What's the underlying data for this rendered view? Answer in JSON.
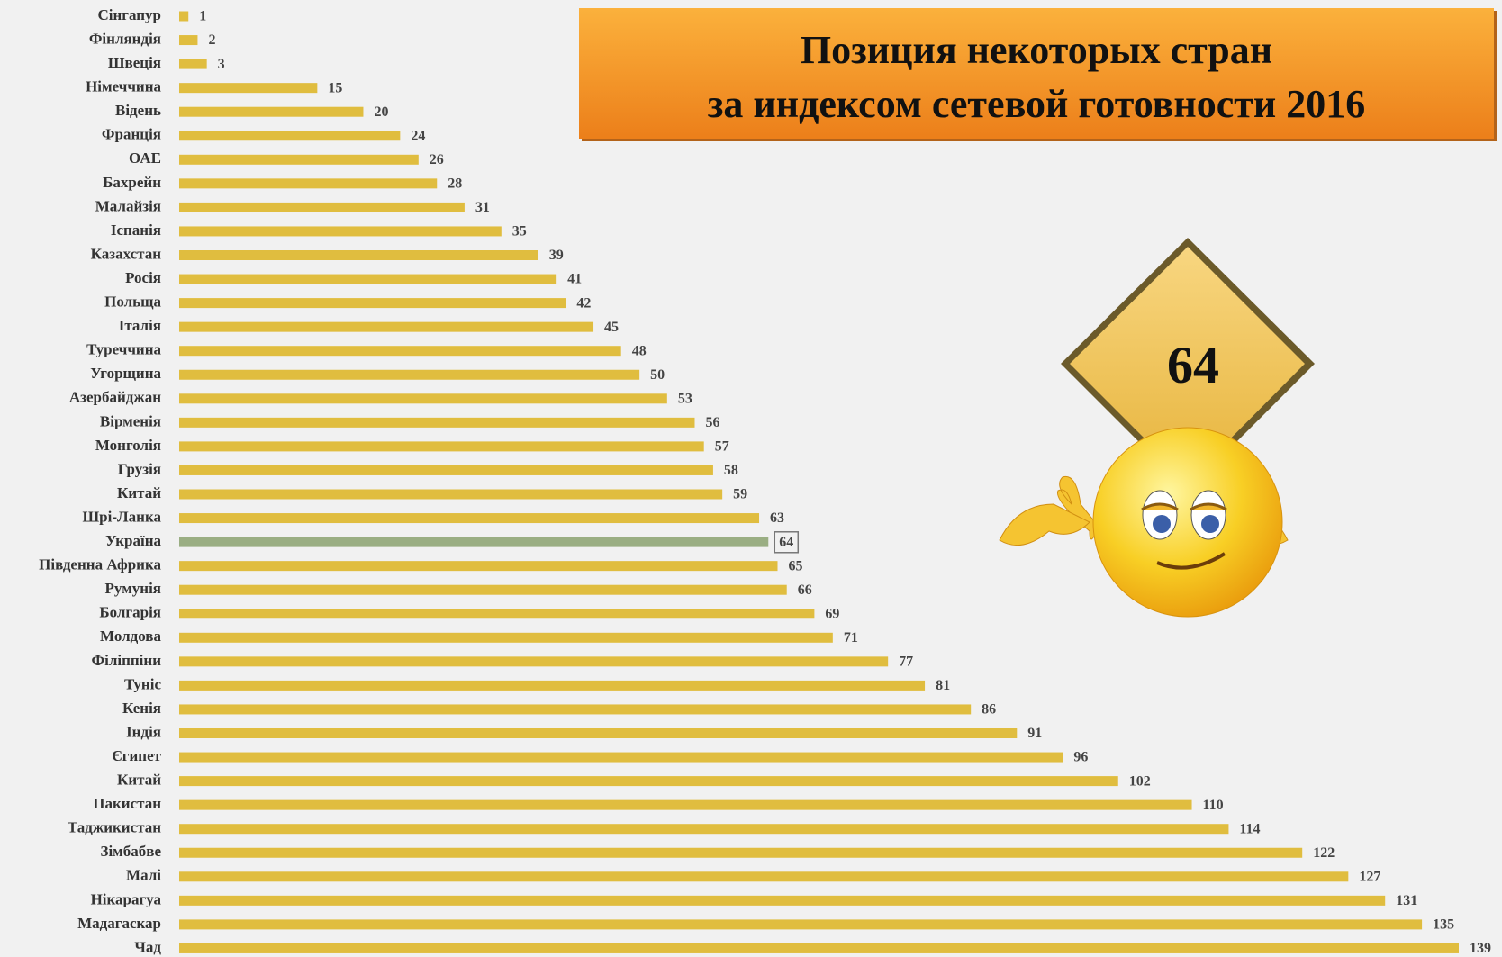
{
  "chart_data": {
    "type": "bar",
    "orientation": "horizontal",
    "title": [
      "Позиция некоторых стран",
      "за индексом сетевой готовности 2016"
    ],
    "annotation": "64",
    "categories": [
      "Сінгапур",
      "Фінляндія",
      "Швеція",
      "Німеччина",
      "Відень",
      "Франція",
      "ОАЕ",
      "Бахрейн",
      "Малайзія",
      "Іспанія",
      "Казахстан",
      "Росія",
      "Польща",
      "Італія",
      "Туреччина",
      "Угорщина",
      "Азербайджан",
      "Вірменія",
      "Монголія",
      "Грузія",
      "Китай",
      "Шрі-Ланка",
      "Україна",
      "Південна Африка",
      "Румунія",
      "Болгарія",
      "Молдова",
      "Філіппіни",
      "Туніс",
      "Кенія",
      "Індія",
      "Єгипет",
      "Китай",
      "Пакистан",
      "Таджикистан",
      "Зімбабве",
      "Малі",
      "Нікарагуа",
      "Мадагаскар",
      "Чад"
    ],
    "values": [
      1,
      2,
      3,
      15,
      20,
      24,
      26,
      28,
      31,
      35,
      39,
      41,
      42,
      45,
      48,
      50,
      53,
      56,
      57,
      58,
      59,
      63,
      64,
      65,
      66,
      69,
      71,
      77,
      81,
      86,
      91,
      96,
      102,
      110,
      114,
      122,
      127,
      131,
      135,
      139
    ],
    "colors": [
      "#e0bd3f",
      "#e0bd3f",
      "#e0bd3f",
      "#e0bd3f",
      "#e0bd3f",
      "#e0bd3f",
      "#e0bd3f",
      "#e0bd3f",
      "#e0bd3f",
      "#e0bd3f",
      "#e0bd3f",
      "#e0bd3f",
      "#e0bd3f",
      "#e0bd3f",
      "#e0bd3f",
      "#e0bd3f",
      "#e0bd3f",
      "#e0bd3f",
      "#e0bd3f",
      "#e0bd3f",
      "#e0bd3f",
      "#e0bd3f",
      "#9aae83",
      "#e0bd3f",
      "#e0bd3f",
      "#e0bd3f",
      "#e0bd3f",
      "#e0bd3f",
      "#e0bd3f",
      "#e0bd3f",
      "#e0bd3f",
      "#e0bd3f",
      "#e0bd3f",
      "#e0bd3f",
      "#e0bd3f",
      "#e0bd3f",
      "#e0bd3f",
      "#e0bd3f",
      "#e0bd3f",
      "#e0bd3f"
    ]
  }
}
